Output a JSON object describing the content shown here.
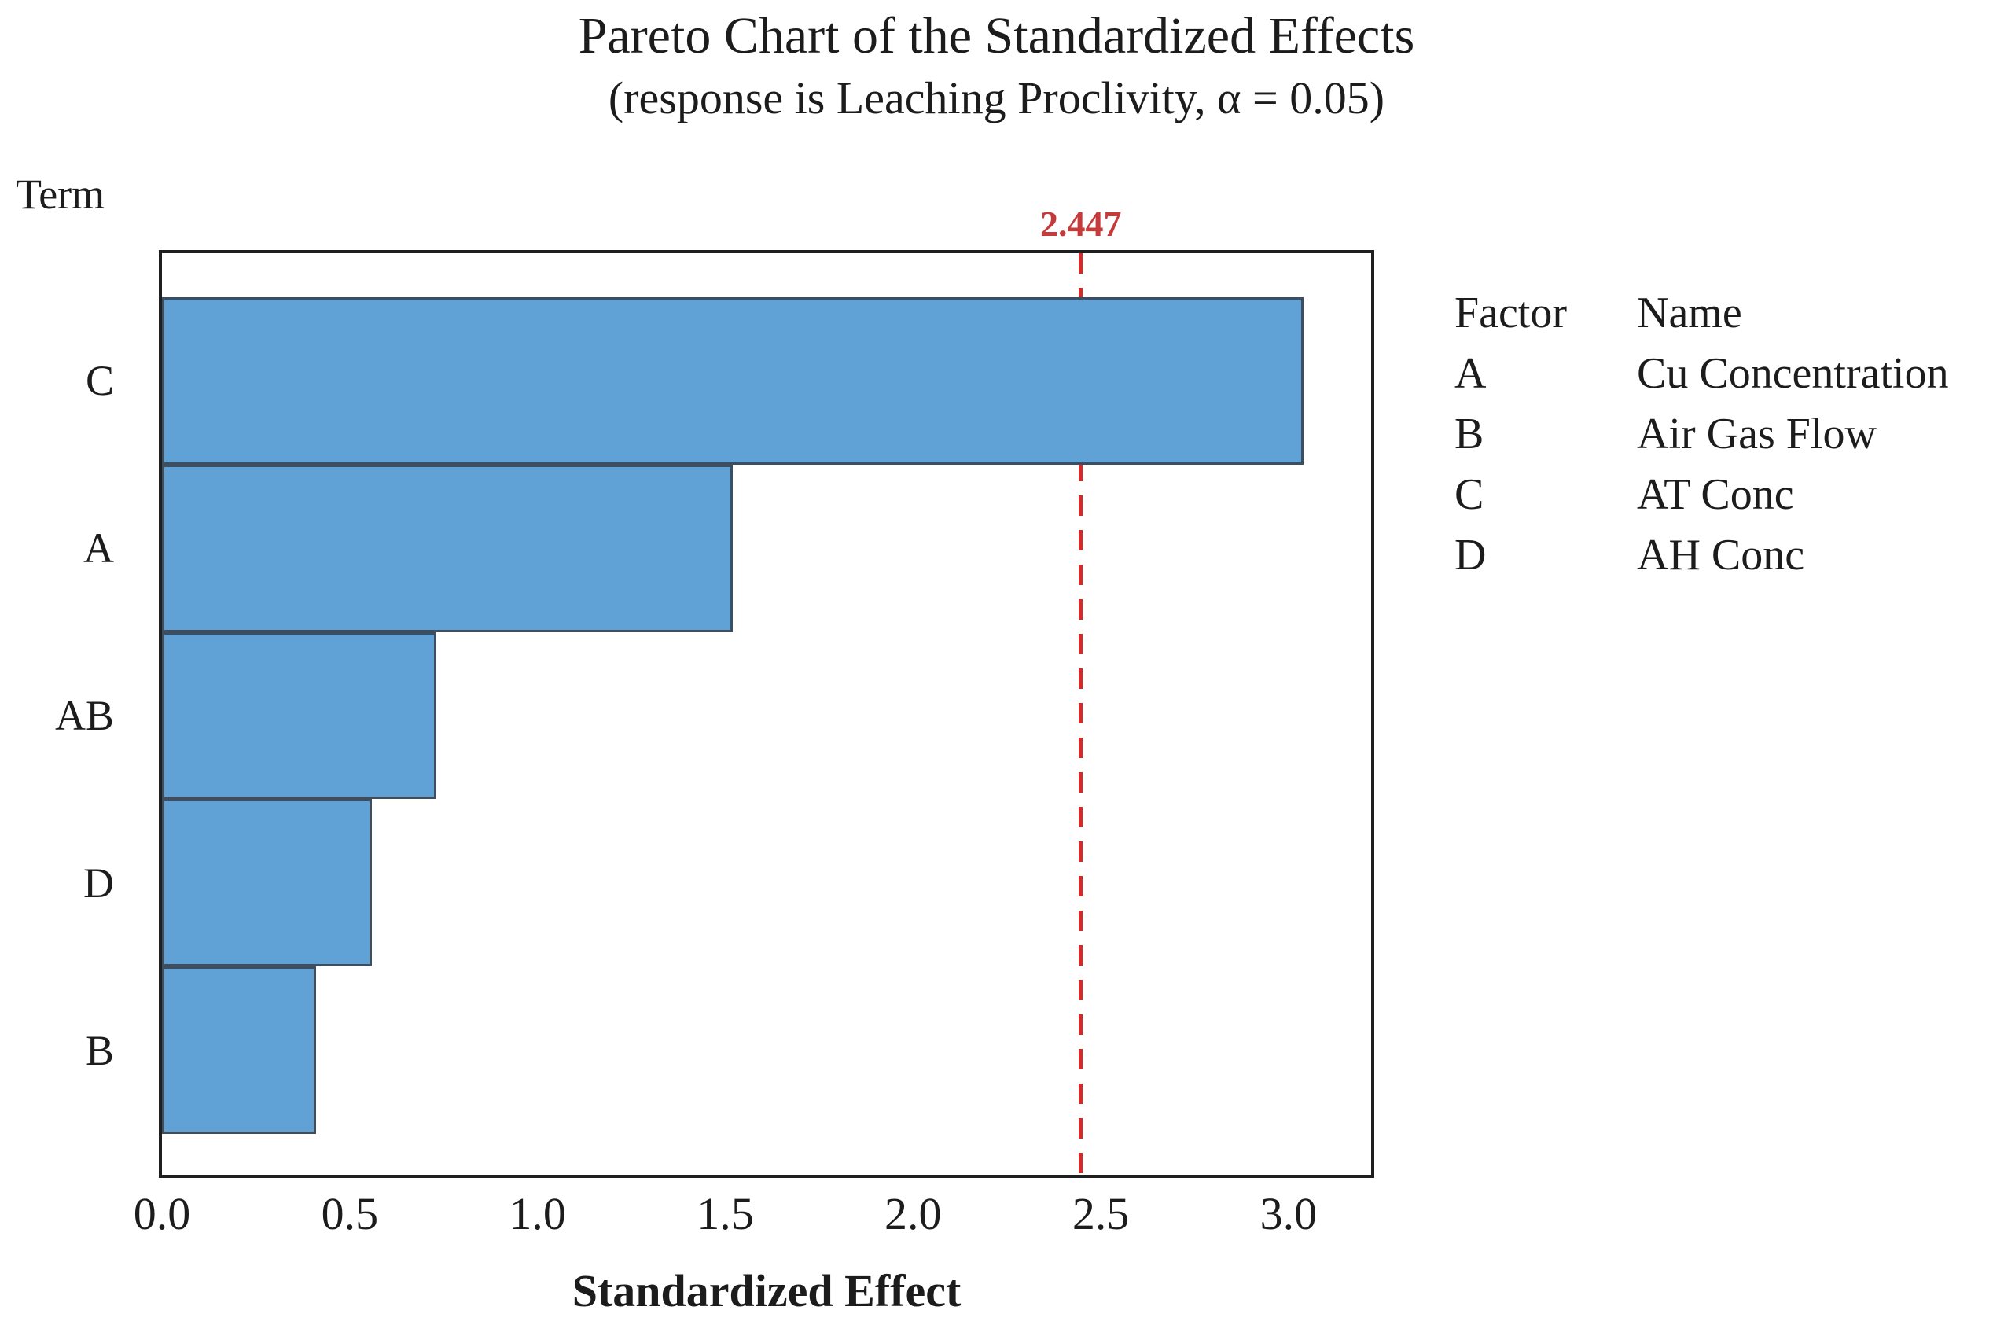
{
  "title": "Pareto Chart of the Standardized Effects",
  "subtitle": "(response is Leaching Proclivity, α = 0.05)",
  "y_axis_title": "Term",
  "x_axis_label": "Standardized Effect",
  "reference_line": {
    "label": "2.447",
    "value": 2.447
  },
  "chart_data": {
    "type": "bar",
    "orientation": "horizontal",
    "title": "Pareto Chart of the Standardized Effects",
    "subtitle": "(response is Leaching Proclivity, α = 0.05)",
    "xlabel": "Standardized Effect",
    "ylabel": "Term",
    "categories": [
      "C",
      "A",
      "AB",
      "D",
      "B"
    ],
    "values": [
      3.04,
      1.52,
      0.73,
      0.56,
      0.41
    ],
    "x_ticks": [
      0.0,
      0.5,
      1.0,
      1.5,
      2.0,
      2.5,
      3.0
    ],
    "x_tick_labels": [
      "0.0",
      "0.5",
      "1.0",
      "1.5",
      "2.0",
      "2.5",
      "3.0"
    ],
    "xlim": [
      0,
      3.22
    ],
    "reference_line_value": 2.447,
    "reference_line_label": "2.447",
    "grid": false,
    "bars_contiguous": true,
    "legend_position": "right"
  },
  "legend": {
    "col1_header": "Factor",
    "col2_header": "Name",
    "rows": [
      {
        "factor": "A",
        "name": "Cu Concentration"
      },
      {
        "factor": "B",
        "name": "Air Gas Flow"
      },
      {
        "factor": "C",
        "name": "AT Conc"
      },
      {
        "factor": "D",
        "name": "AH Conc"
      }
    ]
  },
  "colors": {
    "background": "#FFFFFF",
    "text": "#1C1C1C",
    "frame": "#1F1F1F",
    "bar_fill": "#61A2D6",
    "bar_border": "#3D4E60",
    "reference_line": "#D42A2A",
    "reference_label": "#C63A3A"
  }
}
